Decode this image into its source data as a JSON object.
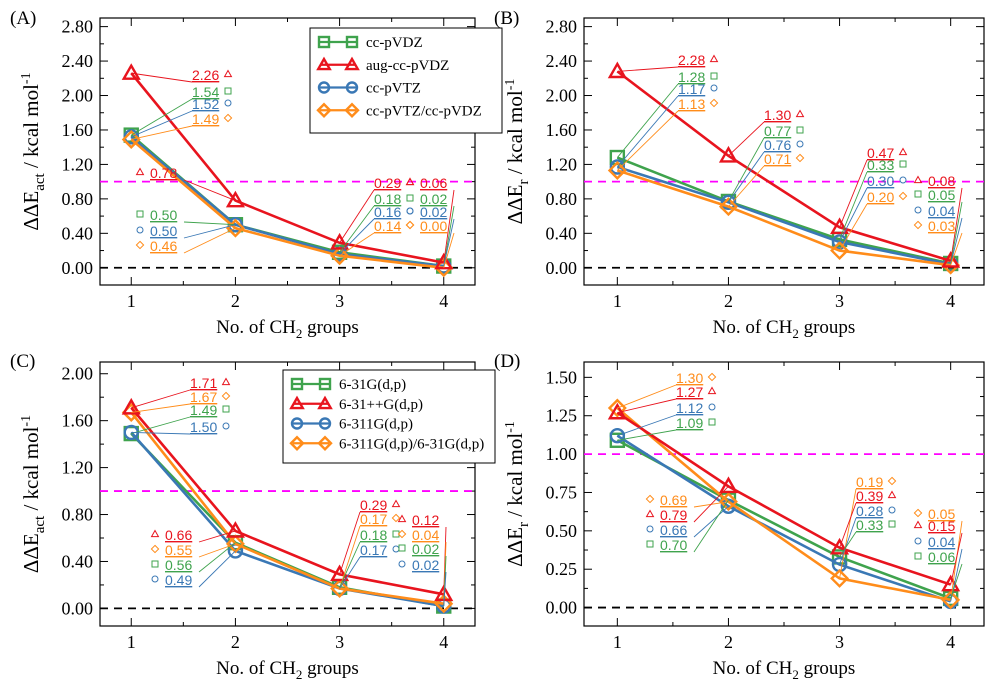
{
  "colors": {
    "green": "#3fa34d",
    "red": "#e8141e",
    "blue": "#3a78b5",
    "orange": "#ff8c1a",
    "threshold": "#ff00ff",
    "zero": "#000000"
  },
  "chart_data": [
    {
      "panel": "(A)",
      "type": "line",
      "ylabel": "ΔΔE_act / kcal mol^-1",
      "xlabel": "No. of CH2 groups",
      "x": [
        1,
        2,
        3,
        4
      ],
      "ylim": [
        -0.2,
        2.9
      ],
      "yticks": [
        "0.00",
        "0.40",
        "0.80",
        "1.20",
        "1.60",
        "2.00",
        "2.40",
        "2.80"
      ],
      "threshold": 1.0,
      "legend": "top-right",
      "series": [
        {
          "name": "cc-pVDZ",
          "marker": "square",
          "color": "green",
          "values": [
            1.54,
            0.5,
            0.18,
            0.02
          ]
        },
        {
          "name": "aug-cc-pVDZ",
          "marker": "triangle",
          "color": "red",
          "values": [
            2.26,
            0.78,
            0.29,
            0.06
          ]
        },
        {
          "name": "cc-pVTZ",
          "marker": "circle",
          "color": "blue",
          "values": [
            1.52,
            0.5,
            0.16,
            0.02
          ]
        },
        {
          "name": "cc-pVTZ/cc-pVDZ",
          "marker": "diamond",
          "color": "orange",
          "values": [
            1.49,
            0.46,
            0.14,
            0.0
          ]
        }
      ]
    },
    {
      "panel": "(B)",
      "type": "line",
      "ylabel": "ΔΔE_r / kcal mol^-1",
      "xlabel": "No. of CH2 groups",
      "x": [
        1,
        2,
        3,
        4
      ],
      "ylim": [
        -0.2,
        2.9
      ],
      "yticks": [
        "0.00",
        "0.40",
        "0.80",
        "1.20",
        "1.60",
        "2.00",
        "2.40",
        "2.80"
      ],
      "threshold": 1.0,
      "series": [
        {
          "name": "cc-pVDZ",
          "marker": "square",
          "color": "green",
          "values": [
            1.28,
            0.77,
            0.33,
            0.05
          ]
        },
        {
          "name": "aug-cc-pVDZ",
          "marker": "triangle",
          "color": "red",
          "values": [
            2.28,
            1.3,
            0.47,
            0.08
          ]
        },
        {
          "name": "cc-pVTZ",
          "marker": "circle",
          "color": "blue",
          "values": [
            1.17,
            0.76,
            0.3,
            0.04
          ]
        },
        {
          "name": "cc-pVTZ/cc-pVDZ",
          "marker": "diamond",
          "color": "orange",
          "values": [
            1.13,
            0.71,
            0.2,
            0.03
          ]
        }
      ]
    },
    {
      "panel": "(C)",
      "type": "line",
      "ylabel": "ΔΔE_act / kcal mol^-1",
      "xlabel": "No. of CH2 groups",
      "x": [
        1,
        2,
        3,
        4
      ],
      "ylim": [
        -0.15,
        2.1
      ],
      "yticks": [
        "0.00",
        "0.40",
        "0.80",
        "1.20",
        "1.60",
        "2.00"
      ],
      "threshold": 1.0,
      "legend": "top-right",
      "series": [
        {
          "name": "6-31G(d,p)",
          "marker": "square",
          "color": "green",
          "values": [
            1.49,
            0.56,
            0.18,
            0.02
          ]
        },
        {
          "name": "6-31++G(d,p)",
          "marker": "triangle",
          "color": "red",
          "values": [
            1.71,
            0.66,
            0.29,
            0.12
          ]
        },
        {
          "name": "6-311G(d,p)",
          "marker": "circle",
          "color": "blue",
          "values": [
            1.5,
            0.49,
            0.17,
            0.02
          ]
        },
        {
          "name": "6-311G(d,p)/6-31G(d,p)",
          "marker": "diamond",
          "color": "orange",
          "values": [
            1.67,
            0.55,
            0.17,
            0.04
          ]
        }
      ]
    },
    {
      "panel": "(D)",
      "type": "line",
      "ylabel": "ΔΔE_r / kcal mol^-1",
      "xlabel": "No. of CH2 groups",
      "x": [
        1,
        2,
        3,
        4
      ],
      "ylim": [
        -0.12,
        1.6
      ],
      "yticks": [
        "0.00",
        "0.25",
        "0.50",
        "0.75",
        "1.00",
        "1.25",
        "1.50"
      ],
      "threshold": 1.0,
      "series": [
        {
          "name": "6-31G(d,p)",
          "marker": "square",
          "color": "green",
          "values": [
            1.09,
            0.7,
            0.33,
            0.06
          ]
        },
        {
          "name": "6-31++G(d,p)",
          "marker": "triangle",
          "color": "red",
          "values": [
            1.27,
            0.79,
            0.39,
            0.15
          ]
        },
        {
          "name": "6-311G(d,p)",
          "marker": "circle",
          "color": "blue",
          "values": [
            1.12,
            0.66,
            0.28,
            0.04
          ]
        },
        {
          "name": "6-311G(d,p)/6-31G(d,p)",
          "marker": "diamond",
          "color": "orange",
          "values": [
            1.3,
            0.69,
            0.19,
            0.05
          ]
        }
      ]
    }
  ]
}
